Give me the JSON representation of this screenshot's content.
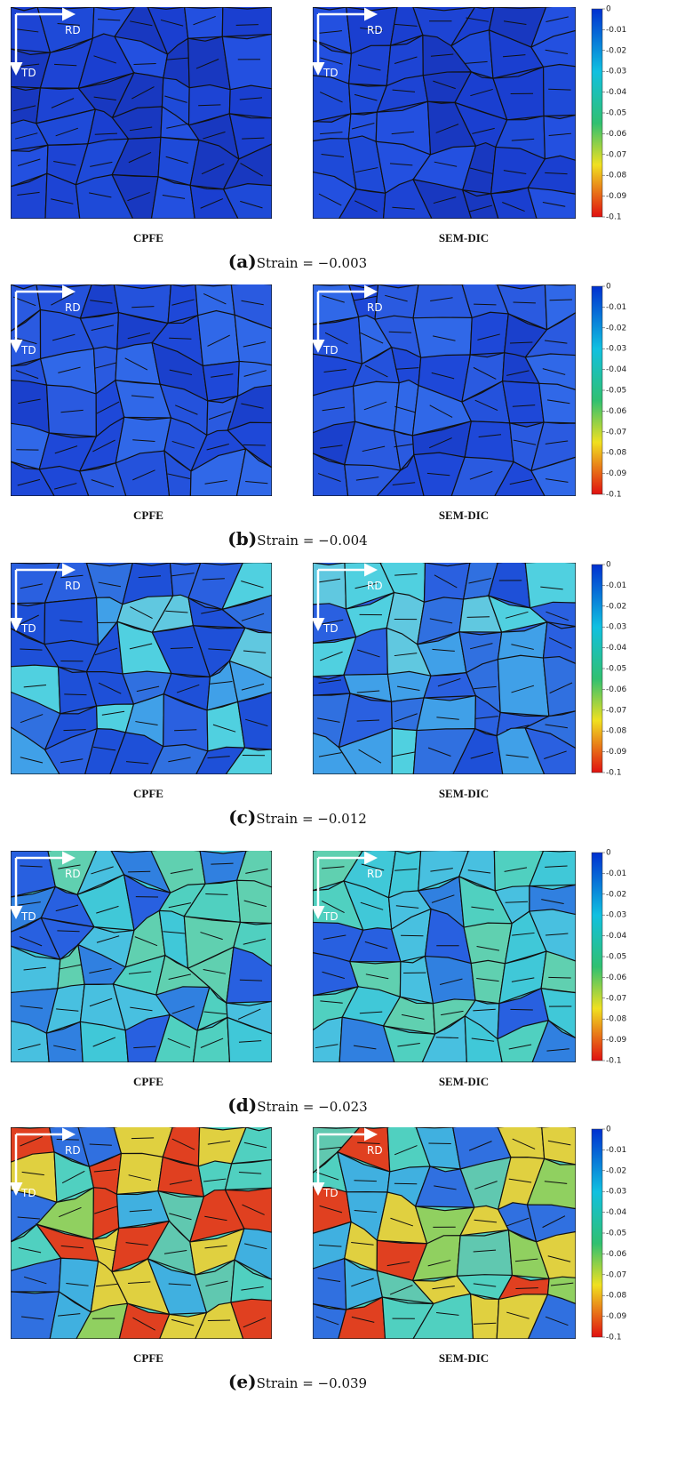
{
  "figure": {
    "panels": [
      {
        "label": "(a)",
        "caption": "Strain = −0.003",
        "maps": [
          {
            "title": "CPFE",
            "rd": "RD",
            "td": "TD"
          },
          {
            "title": "SEM-DIC",
            "rd": "RD",
            "td": "TD"
          }
        ],
        "colorbar_ticks": [
          0,
          -0.01,
          -0.02,
          -0.03,
          -0.04,
          -0.05,
          -0.06,
          -0.07,
          -0.08,
          -0.09,
          -0.1
        ]
      },
      {
        "label": "(b)",
        "caption": "Strain = −0.004",
        "maps": [
          {
            "title": "CPFE",
            "rd": "RD",
            "td": "TD"
          },
          {
            "title": "SEM-DIC",
            "rd": "RD",
            "td": "TD"
          }
        ],
        "colorbar_ticks": [
          0,
          -0.01,
          -0.02,
          -0.03,
          -0.04,
          -0.05,
          -0.06,
          -0.07,
          -0.08,
          -0.09,
          -0.1
        ]
      },
      {
        "label": "(c)",
        "caption": "Strain = −0.012",
        "maps": [
          {
            "title": "CPFE",
            "rd": "RD",
            "td": "TD"
          },
          {
            "title": "SEM-DIC",
            "rd": "RD",
            "td": "TD"
          }
        ],
        "colorbar_ticks": [
          0,
          -0.01,
          -0.02,
          -0.03,
          -0.04,
          -0.05,
          -0.06,
          -0.07,
          -0.08,
          -0.09,
          -0.1
        ]
      },
      {
        "label": "(d)",
        "caption": "Strain = −0.023",
        "maps": [
          {
            "title": "CPFE",
            "rd": "RD",
            "td": "TD"
          },
          {
            "title": "SEM-DIC",
            "rd": "RD",
            "td": "TD"
          }
        ],
        "colorbar_ticks": [
          0,
          -0.01,
          -0.02,
          -0.03,
          -0.04,
          -0.05,
          -0.06,
          -0.07,
          -0.08,
          -0.09,
          -0.1
        ]
      },
      {
        "label": "(e)",
        "caption": "Strain = −0.039",
        "maps": [
          {
            "title": "CPFE",
            "rd": "RD",
            "td": "TD"
          },
          {
            "title": "SEM-DIC",
            "rd": "RD",
            "td": "TD"
          }
        ],
        "colorbar_ticks": [
          0,
          -0.01,
          -0.02,
          -0.03,
          -0.04,
          -0.05,
          -0.06,
          -0.07,
          -0.08,
          -0.09,
          -0.1
        ]
      }
    ]
  }
}
